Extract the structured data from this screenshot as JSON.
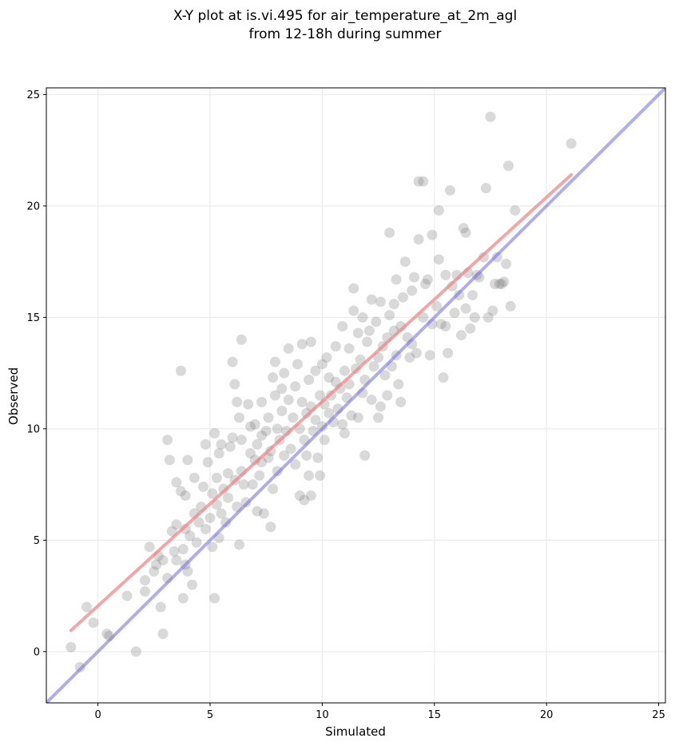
{
  "chart_data": {
    "type": "scatter",
    "title": "X-Y plot at is.vi.495 for air_temperature_at_2m_agl",
    "subtitle": "from 12-18h during summer",
    "xlabel": "Simulated",
    "ylabel": "Observed",
    "xlim": [
      -2.3,
      25.3
    ],
    "ylim": [
      -2.3,
      25.3
    ],
    "xticks": [
      0,
      5,
      10,
      15,
      20,
      25
    ],
    "yticks": [
      0,
      5,
      10,
      15,
      20,
      25
    ],
    "grid": true,
    "colors": {
      "points": "#808080",
      "regression_line": "#f08080",
      "identity_line": "#6a6ae8"
    },
    "identity_line": {
      "x": [
        -2.3,
        25.3
      ],
      "y": [
        -2.3,
        25.3
      ]
    },
    "regression_line": {
      "x": [
        -1.2,
        21.1
      ],
      "y": [
        0.95,
        21.4
      ]
    },
    "points": [
      [
        -1.2,
        0.2
      ],
      [
        -0.8,
        -0.7
      ],
      [
        -0.5,
        2.0
      ],
      [
        -0.2,
        1.3
      ],
      [
        0.4,
        0.8
      ],
      [
        0.5,
        0.7
      ],
      [
        1.3,
        2.5
      ],
      [
        1.7,
        0.0
      ],
      [
        2.1,
        2.7
      ],
      [
        2.1,
        3.2
      ],
      [
        2.3,
        4.7
      ],
      [
        2.5,
        3.6
      ],
      [
        2.6,
        3.9
      ],
      [
        2.7,
        4.3
      ],
      [
        2.8,
        2.0
      ],
      [
        2.9,
        0.8
      ],
      [
        2.9,
        4.1
      ],
      [
        3.1,
        3.3
      ],
      [
        3.1,
        9.5
      ],
      [
        3.2,
        8.6
      ],
      [
        3.3,
        5.4
      ],
      [
        3.4,
        4.5
      ],
      [
        3.5,
        4.1
      ],
      [
        3.5,
        5.7
      ],
      [
        3.5,
        7.6
      ],
      [
        3.7,
        12.6
      ],
      [
        3.7,
        7.2
      ],
      [
        3.8,
        4.6
      ],
      [
        3.8,
        2.4
      ],
      [
        3.9,
        3.9
      ],
      [
        3.9,
        5.5
      ],
      [
        3.9,
        7.0
      ],
      [
        4.0,
        8.6
      ],
      [
        4.0,
        3.6
      ],
      [
        4.1,
        5.2
      ],
      [
        4.2,
        3.0
      ],
      [
        4.3,
        6.2
      ],
      [
        4.3,
        7.8
      ],
      [
        4.4,
        4.9
      ],
      [
        4.5,
        5.8
      ],
      [
        4.6,
        6.5
      ],
      [
        4.7,
        7.4
      ],
      [
        4.8,
        5.5
      ],
      [
        4.8,
        9.3
      ],
      [
        4.9,
        8.5
      ],
      [
        5.0,
        6.0
      ],
      [
        5.1,
        7.1
      ],
      [
        5.1,
        4.7
      ],
      [
        5.2,
        2.4
      ],
      [
        5.2,
        9.8
      ],
      [
        5.3,
        6.6
      ],
      [
        5.3,
        7.8
      ],
      [
        5.4,
        8.9
      ],
      [
        5.4,
        5.1
      ],
      [
        5.5,
        9.3
      ],
      [
        5.5,
        6.2
      ],
      [
        5.6,
        7.3
      ],
      [
        5.7,
        5.8
      ],
      [
        5.8,
        6.9
      ],
      [
        5.8,
        8.0
      ],
      [
        5.9,
        9.2
      ],
      [
        6.0,
        13.0
      ],
      [
        6.0,
        9.6
      ],
      [
        6.1,
        7.7
      ],
      [
        6.1,
        12.0
      ],
      [
        6.2,
        11.2
      ],
      [
        6.2,
        6.5
      ],
      [
        6.3,
        10.5
      ],
      [
        6.3,
        4.8
      ],
      [
        6.4,
        14.0
      ],
      [
        6.4,
        9.5
      ],
      [
        6.4,
        8.1
      ],
      [
        6.5,
        7.5
      ],
      [
        6.6,
        6.7
      ],
      [
        6.7,
        11.1
      ],
      [
        6.8,
        8.9
      ],
      [
        6.8,
        10.1
      ],
      [
        6.9,
        7.5
      ],
      [
        7.0,
        8.6
      ],
      [
        7.0,
        10.2
      ],
      [
        7.1,
        9.3
      ],
      [
        7.1,
        6.3
      ],
      [
        7.2,
        7.9
      ],
      [
        7.3,
        8.5
      ],
      [
        7.3,
        9.7
      ],
      [
        7.3,
        11.2
      ],
      [
        7.4,
        6.2
      ],
      [
        7.5,
        9.9
      ],
      [
        7.6,
        10.5
      ],
      [
        7.6,
        8.7
      ],
      [
        7.7,
        5.6
      ],
      [
        7.7,
        9.0
      ],
      [
        7.8,
        7.3
      ],
      [
        7.8,
        12.3
      ],
      [
        7.9,
        11.5
      ],
      [
        7.9,
        13.0
      ],
      [
        8.0,
        10.0
      ],
      [
        8.0,
        8.1
      ],
      [
        8.1,
        9.5
      ],
      [
        8.2,
        11.8
      ],
      [
        8.2,
        10.8
      ],
      [
        8.3,
        8.8
      ],
      [
        8.3,
        12.5
      ],
      [
        8.4,
        9.9
      ],
      [
        8.5,
        11.3
      ],
      [
        8.5,
        13.6
      ],
      [
        8.6,
        9.1
      ],
      [
        8.7,
        10.5
      ],
      [
        8.8,
        11.9
      ],
      [
        8.8,
        8.4
      ],
      [
        8.9,
        12.9
      ],
      [
        9.0,
        10.0
      ],
      [
        9.0,
        7.0
      ],
      [
        9.1,
        13.8
      ],
      [
        9.1,
        11.2
      ],
      [
        9.2,
        6.8
      ],
      [
        9.2,
        9.5
      ],
      [
        9.3,
        10.7
      ],
      [
        9.3,
        8.8
      ],
      [
        9.4,
        12.2
      ],
      [
        9.4,
        7.9
      ],
      [
        9.5,
        13.9
      ],
      [
        9.5,
        7.0
      ],
      [
        9.5,
        11.0
      ],
      [
        9.6,
        9.9
      ],
      [
        9.7,
        10.4
      ],
      [
        9.7,
        12.6
      ],
      [
        9.8,
        8.7
      ],
      [
        9.9,
        11.5
      ],
      [
        9.9,
        7.9
      ],
      [
        10.0,
        10.1
      ],
      [
        10.0,
        12.9
      ],
      [
        10.1,
        9.5
      ],
      [
        10.1,
        11.1
      ],
      [
        10.2,
        13.2
      ],
      [
        10.3,
        10.7
      ],
      [
        10.3,
        12.3
      ],
      [
        10.4,
        11.5
      ],
      [
        10.5,
        10.3
      ],
      [
        10.6,
        12.1
      ],
      [
        10.6,
        13.7
      ],
      [
        10.7,
        10.9
      ],
      [
        10.8,
        11.8
      ],
      [
        10.9,
        14.6
      ],
      [
        10.9,
        10.2
      ],
      [
        11.0,
        12.6
      ],
      [
        11.0,
        9.8
      ],
      [
        11.1,
        11.4
      ],
      [
        11.2,
        13.6
      ],
      [
        11.2,
        12.0
      ],
      [
        11.3,
        10.6
      ],
      [
        11.4,
        15.3
      ],
      [
        11.4,
        16.3
      ],
      [
        11.5,
        12.7
      ],
      [
        11.6,
        14.3
      ],
      [
        11.6,
        10.5
      ],
      [
        11.7,
        13.1
      ],
      [
        11.8,
        15.0
      ],
      [
        11.8,
        11.6
      ],
      [
        11.9,
        8.8
      ],
      [
        11.9,
        12.2
      ],
      [
        12.0,
        13.9
      ],
      [
        12.1,
        14.4
      ],
      [
        12.2,
        15.8
      ],
      [
        12.2,
        11.3
      ],
      [
        12.3,
        12.8
      ],
      [
        12.4,
        14.8
      ],
      [
        12.5,
        13.2
      ],
      [
        12.5,
        10.5
      ],
      [
        12.6,
        11.0
      ],
      [
        12.6,
        15.7
      ],
      [
        12.7,
        13.7
      ],
      [
        12.8,
        12.4
      ],
      [
        12.9,
        14.1
      ],
      [
        12.9,
        11.5
      ],
      [
        13.0,
        15.1
      ],
      [
        13.0,
        18.8
      ],
      [
        13.1,
        12.8
      ],
      [
        13.2,
        14.4
      ],
      [
        13.2,
        15.6
      ],
      [
        13.3,
        13.3
      ],
      [
        13.3,
        16.7
      ],
      [
        13.4,
        12.0
      ],
      [
        13.5,
        14.6
      ],
      [
        13.5,
        11.2
      ],
      [
        13.6,
        15.9
      ],
      [
        13.7,
        17.5
      ],
      [
        13.8,
        14.1
      ],
      [
        13.9,
        13.2
      ],
      [
        14.0,
        16.2
      ],
      [
        14.0,
        13.8
      ],
      [
        14.1,
        16.8
      ],
      [
        14.2,
        13.4
      ],
      [
        14.3,
        18.5
      ],
      [
        14.3,
        21.1
      ],
      [
        14.5,
        21.1
      ],
      [
        14.5,
        15.0
      ],
      [
        14.6,
        16.5
      ],
      [
        14.7,
        16.7
      ],
      [
        14.8,
        13.3
      ],
      [
        14.9,
        14.7
      ],
      [
        14.9,
        18.7
      ],
      [
        15.1,
        15.5
      ],
      [
        15.2,
        19.8
      ],
      [
        15.2,
        17.6
      ],
      [
        15.3,
        14.7
      ],
      [
        15.4,
        12.3
      ],
      [
        15.5,
        16.9
      ],
      [
        15.5,
        14.6
      ],
      [
        15.6,
        13.4
      ],
      [
        15.7,
        20.7
      ],
      [
        15.8,
        16.4
      ],
      [
        15.9,
        15.2
      ],
      [
        16.0,
        16.9
      ],
      [
        16.1,
        16.0
      ],
      [
        16.2,
        14.2
      ],
      [
        16.3,
        19.0
      ],
      [
        16.4,
        18.8
      ],
      [
        16.4,
        15.4
      ],
      [
        16.5,
        17.0
      ],
      [
        16.6,
        14.5
      ],
      [
        16.7,
        16.0
      ],
      [
        16.8,
        15.0
      ],
      [
        16.9,
        16.9
      ],
      [
        17.0,
        16.8
      ],
      [
        17.2,
        17.7
      ],
      [
        17.3,
        20.8
      ],
      [
        17.4,
        15.0
      ],
      [
        17.5,
        24.0
      ],
      [
        17.6,
        15.3
      ],
      [
        17.7,
        16.5
      ],
      [
        17.8,
        17.7
      ],
      [
        17.9,
        16.5
      ],
      [
        18.0,
        16.5
      ],
      [
        18.1,
        16.6
      ],
      [
        18.2,
        17.4
      ],
      [
        18.3,
        21.8
      ],
      [
        18.4,
        15.5
      ],
      [
        18.6,
        19.8
      ],
      [
        21.1,
        22.8
      ]
    ]
  }
}
